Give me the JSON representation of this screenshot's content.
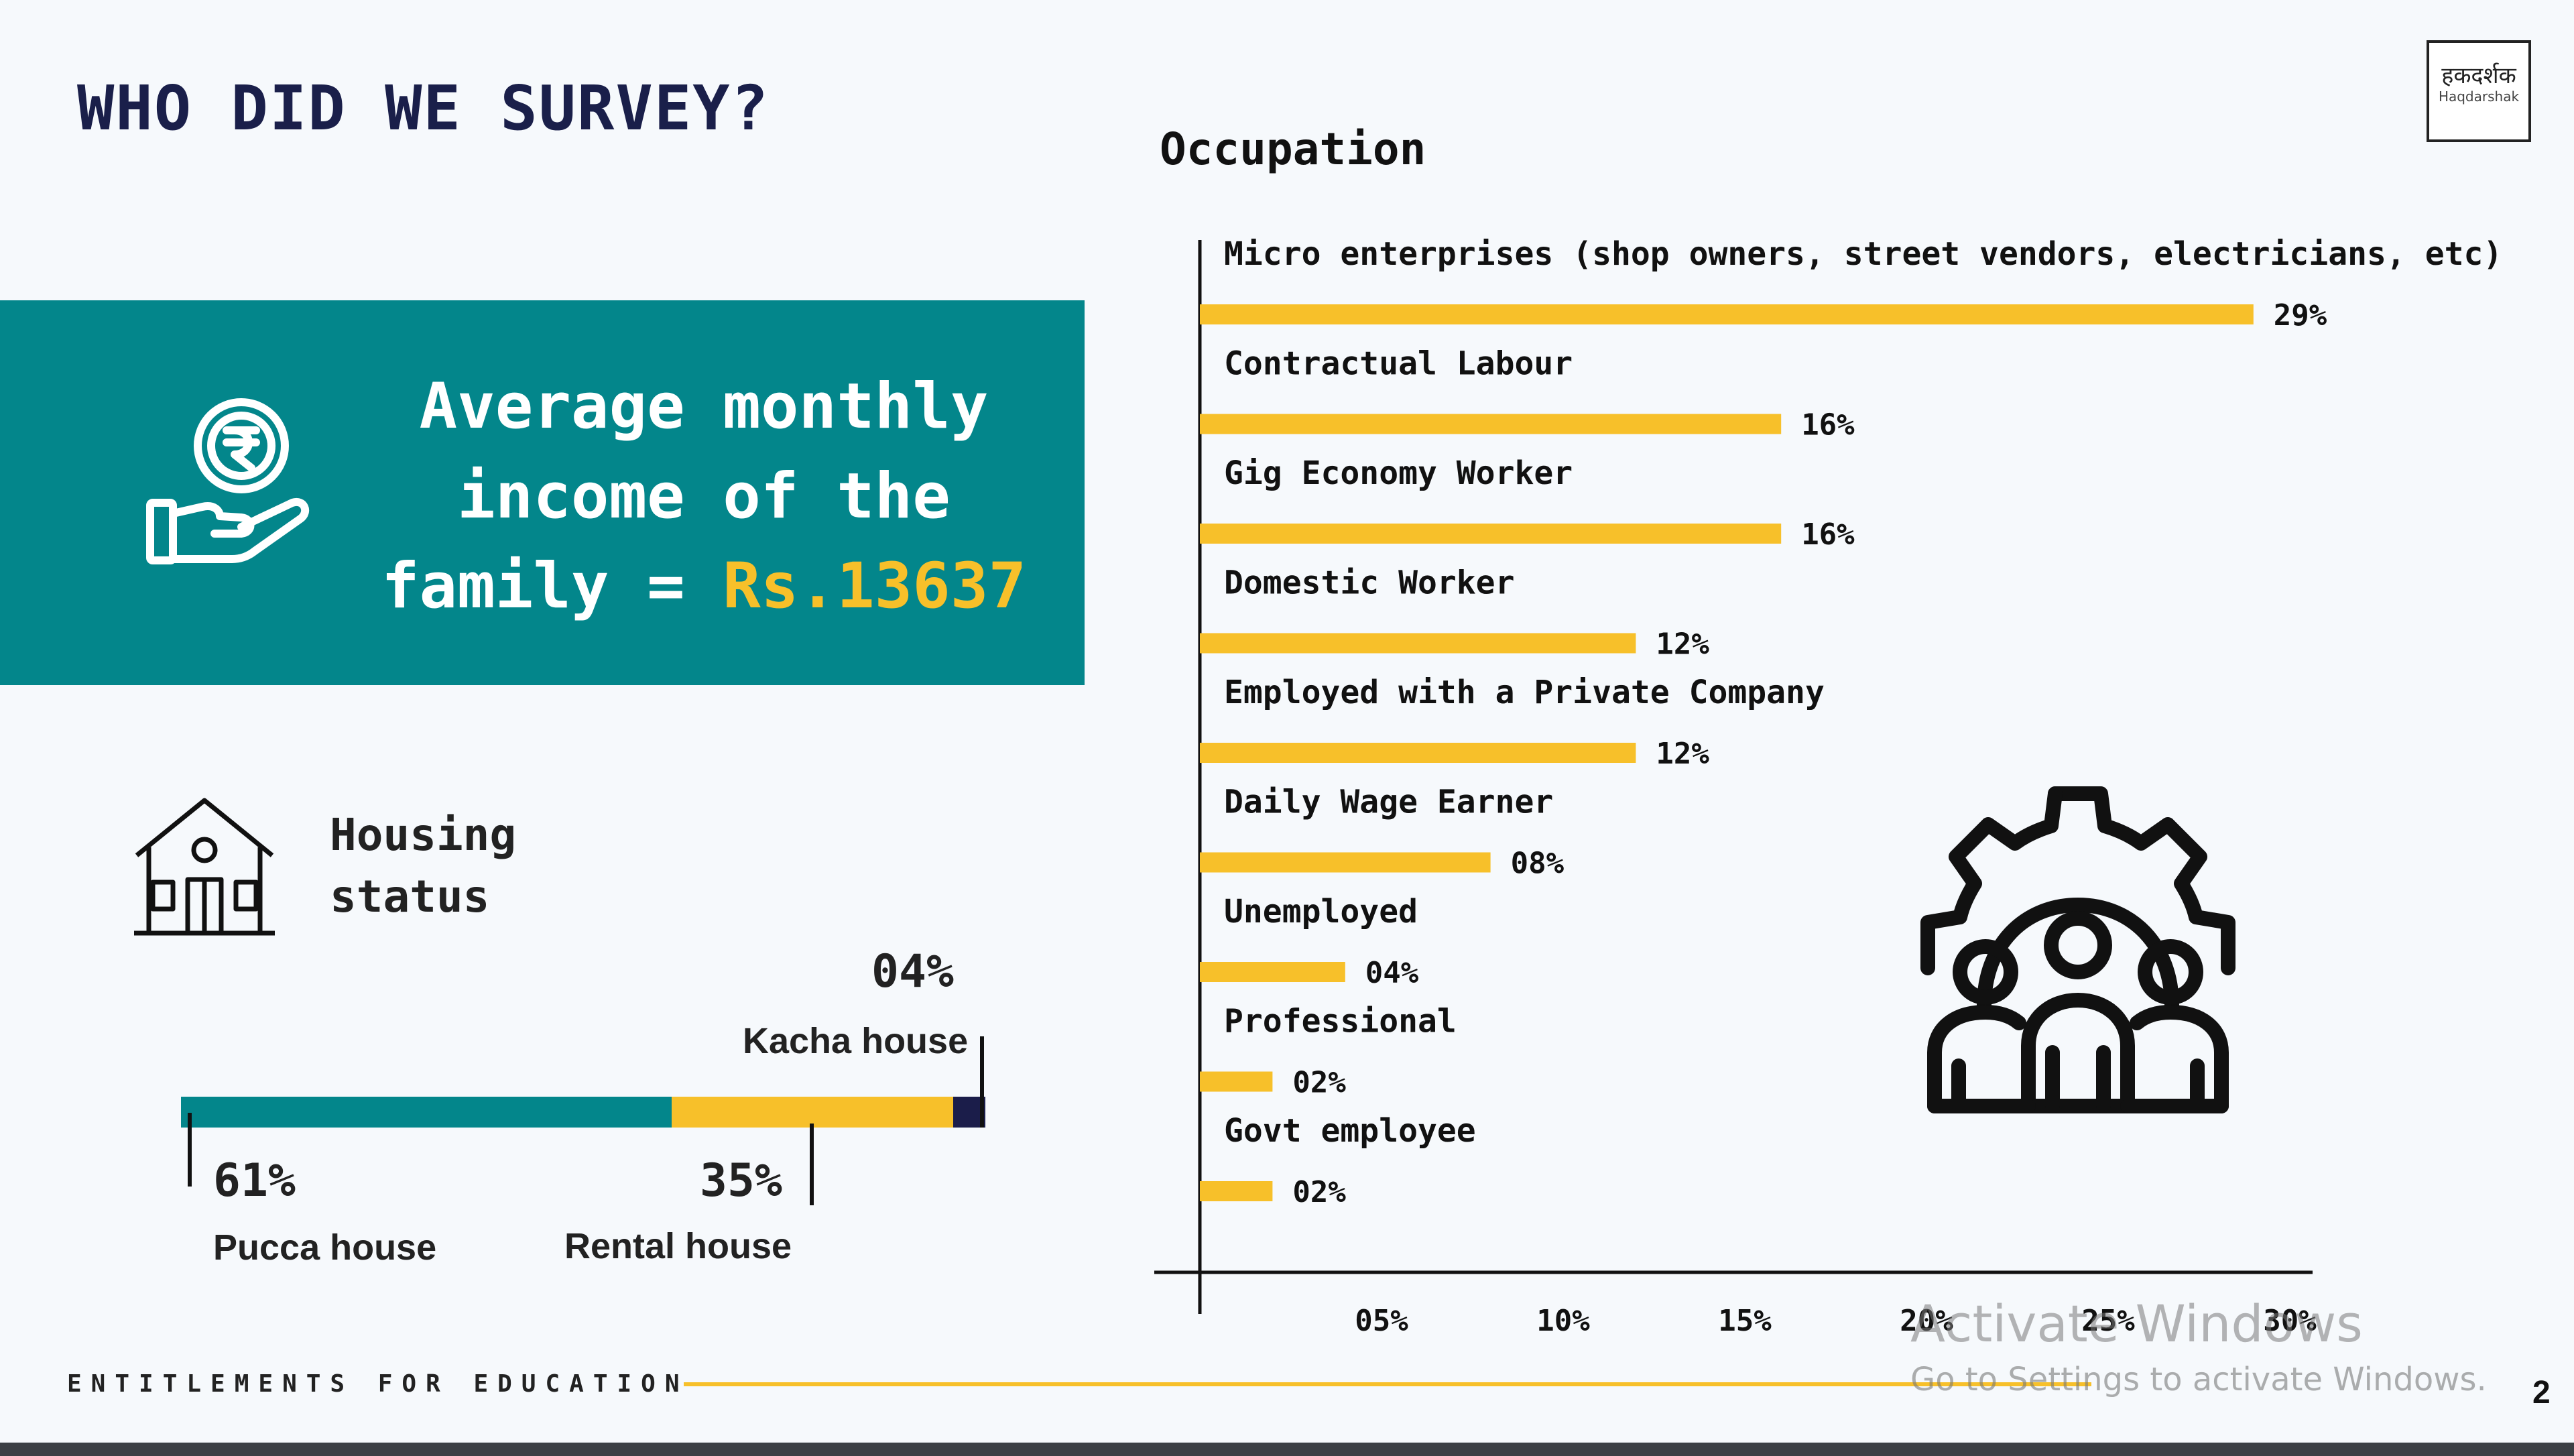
{
  "page": {
    "title": "WHO DID WE SURVEY?",
    "logo_line1": "हकदर्शक",
    "logo_line2": "Haqdarshak",
    "footer": "ENTITLEMENTS FOR EDUCATION",
    "page_number": "2",
    "watermark_line1": "Activate Windows",
    "watermark_line2": "Go to Settings to activate Windows."
  },
  "income": {
    "line1": "Average monthly",
    "line2": "income of the",
    "line3_prefix": "family = ",
    "amount": "Rs.13637",
    "icon": "hand-rupee-icon"
  },
  "housing": {
    "title_line1": "Housing",
    "title_line2": "status",
    "icon": "house-icon",
    "segments": [
      {
        "label": "Pucca house",
        "pct": "61%",
        "value": 61,
        "color": "#03868b"
      },
      {
        "label": "Rental house",
        "pct": "35%",
        "value": 35,
        "color": "#f7c02a"
      },
      {
        "label": "Kacha house",
        "pct": "04%",
        "value": 4,
        "color": "#1b1d4a"
      }
    ]
  },
  "chart_data": {
    "type": "bar",
    "orientation": "horizontal",
    "title": "Occupation",
    "categories": [
      "Micro enterprises (shop owners, street vendors, electricians, etc)",
      "Contractual Labour",
      "Gig Economy Worker",
      "Domestic Worker",
      "Employed with a Private Company",
      "Daily Wage Earner",
      "Unemployed",
      "Professional",
      "Govt employee"
    ],
    "values": [
      29,
      16,
      16,
      12,
      12,
      8,
      4,
      2,
      2
    ],
    "value_labels": [
      "29%",
      "16%",
      "16%",
      "12%",
      "12%",
      "08%",
      "04%",
      "02%",
      "02%"
    ],
    "xticks": [
      "05%",
      "10%",
      "15%",
      "20%",
      "25%",
      "30%"
    ],
    "xlim": [
      0,
      30
    ],
    "bar_color": "#f7c02a",
    "grid": false,
    "icon": "team-gear-icon"
  }
}
